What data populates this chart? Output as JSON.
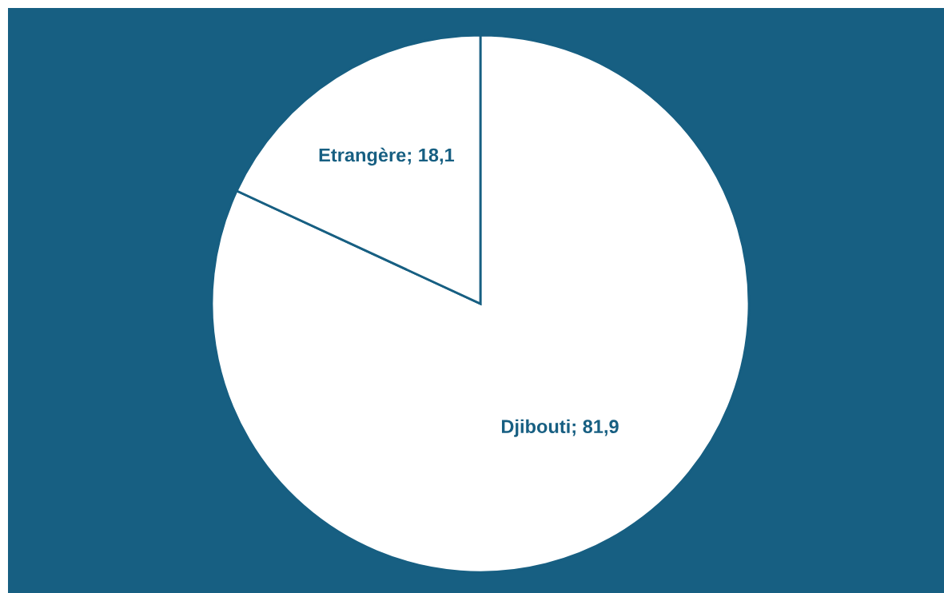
{
  "chart_data": {
    "type": "pie",
    "categories": [
      "Djibouti",
      "Etrangère"
    ],
    "values": [
      81.9,
      18.1
    ],
    "value_labels": [
      "81,9",
      "18,1"
    ],
    "colors": [
      "#ffffff",
      "#ffffff"
    ],
    "legend": false
  }
}
